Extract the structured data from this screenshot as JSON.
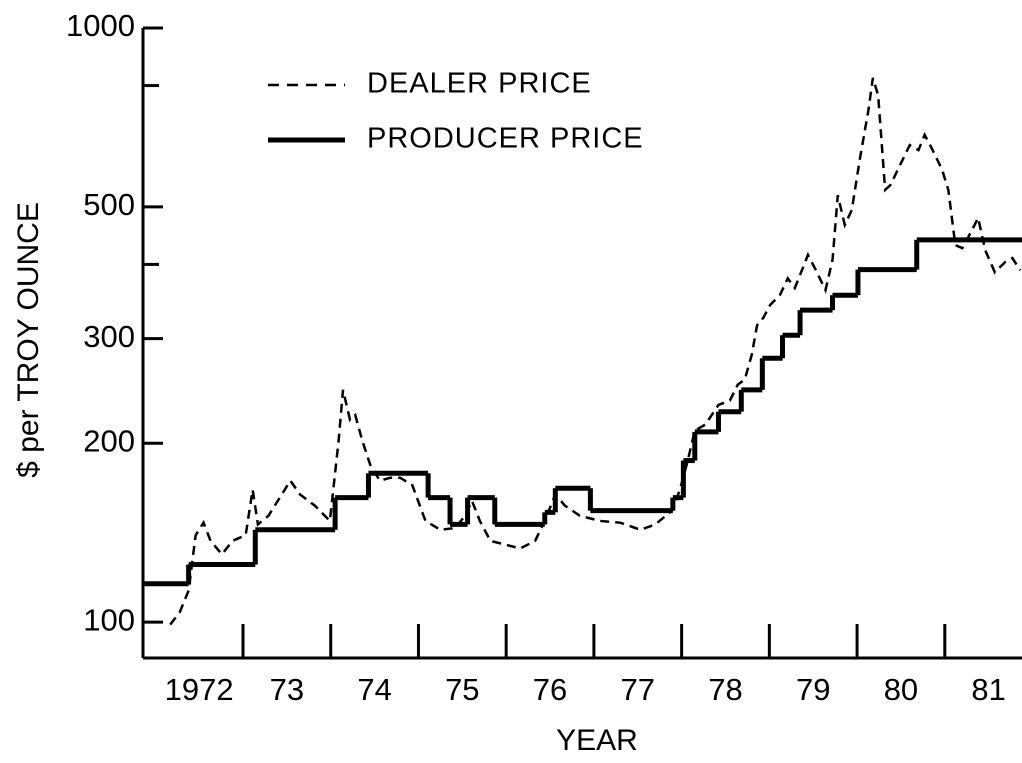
{
  "chart_data": {
    "type": "line",
    "x_label": "YEAR",
    "y_label": "$ per TROY OUNCE",
    "log_y": true,
    "legend": "upper left",
    "xlim": [
      1971.86,
      1981.88
    ],
    "xticks": [
      {
        "value": 1972.5,
        "label": "1972"
      },
      {
        "value": 1973.5,
        "label": "73"
      },
      {
        "value": 1974.5,
        "label": "74"
      },
      {
        "value": 1975.5,
        "label": "75"
      },
      {
        "value": 1976.5,
        "label": "76"
      },
      {
        "value": 1977.5,
        "label": "77"
      },
      {
        "value": 1978.5,
        "label": "78"
      },
      {
        "value": 1979.5,
        "label": "79"
      },
      {
        "value": 1980.5,
        "label": "80"
      },
      {
        "value": 1981.5,
        "label": "81"
      }
    ],
    "year_marks": [
      1973,
      1974,
      1975,
      1976,
      1977,
      1978,
      1979,
      1980,
      1981
    ],
    "ylim": [
      87,
      1000
    ],
    "yticks": [
      100,
      200,
      300,
      500,
      1000
    ],
    "minor_yticks": [
      400,
      800
    ],
    "series": [
      {
        "name": "DEALER PRICE",
        "color": "#000000",
        "style": "dashed",
        "x": [
          1972.17,
          1972.28,
          1972.38,
          1972.46,
          1972.55,
          1972.63,
          1972.76,
          1972.88,
          1973.03,
          1973.11,
          1973.17,
          1973.29,
          1973.42,
          1973.54,
          1973.65,
          1973.82,
          1973.99,
          1974.09,
          1974.14,
          1974.22,
          1974.28,
          1974.36,
          1974.45,
          1974.56,
          1974.68,
          1974.79,
          1974.93,
          1975.08,
          1975.25,
          1975.42,
          1975.53,
          1975.61,
          1975.7,
          1975.82,
          1975.99,
          1976.16,
          1976.33,
          1976.44,
          1976.56,
          1976.67,
          1976.84,
          1977.07,
          1977.3,
          1977.53,
          1977.7,
          1977.89,
          1977.98,
          1978.07,
          1978.15,
          1978.27,
          1978.42,
          1978.55,
          1978.64,
          1978.72,
          1978.8,
          1978.86,
          1978.93,
          1979.01,
          1979.12,
          1979.21,
          1979.29,
          1979.35,
          1979.44,
          1979.52,
          1979.64,
          1979.72,
          1979.78,
          1979.86,
          1979.94,
          1980.03,
          1980.13,
          1980.18,
          1980.24,
          1980.32,
          1980.38,
          1980.49,
          1980.6,
          1980.7,
          1980.77,
          1980.85,
          1980.97,
          1981.04,
          1981.12,
          1981.2,
          1981.31,
          1981.38,
          1981.46,
          1981.57,
          1981.69,
          1981.77,
          1981.86
        ],
        "values": [
          99,
          104,
          113,
          140,
          147,
          137,
          130,
          137,
          140,
          167,
          146,
          151,
          162,
          173,
          164,
          157,
          148,
          202,
          246,
          219,
          223,
          202,
          184,
          173,
          175,
          175,
          170,
          148,
          143,
          144,
          151,
          160,
          148,
          137,
          135,
          133,
          137,
          148,
          164,
          157,
          151,
          148,
          147,
          143,
          146,
          154,
          167,
          187,
          210,
          215,
          232,
          236,
          251,
          256,
          282,
          316,
          325,
          342,
          355,
          379,
          365,
          384,
          415,
          394,
          362,
          407,
          523,
          466,
          494,
          600,
          728,
          824,
          771,
          534,
          544,
          588,
          635,
          623,
          661,
          628,
          577,
          534,
          431,
          426,
          457,
          479,
          423,
          388,
          404,
          410,
          391
        ]
      },
      {
        "name": "PRODUCER PRICE",
        "color": "#000000",
        "style": "step",
        "x": [
          1971.86,
          1972.38,
          1973.14,
          1974.05,
          1974.43,
          1975.11,
          1975.36,
          1975.56,
          1975.87,
          1976.44,
          1976.56,
          1976.96,
          1977.9,
          1978.02,
          1978.15,
          1978.42,
          1978.68,
          1978.92,
          1979.15,
          1979.35,
          1979.72,
          1980.01,
          1980.68
        ],
        "values": [
          116,
          125,
          143,
          162,
          178,
          162,
          146,
          162,
          146,
          153,
          168,
          154,
          162,
          187,
          209,
          226,
          246,
          278,
          304,
          335,
          355,
          392,
          440
        ]
      }
    ]
  }
}
